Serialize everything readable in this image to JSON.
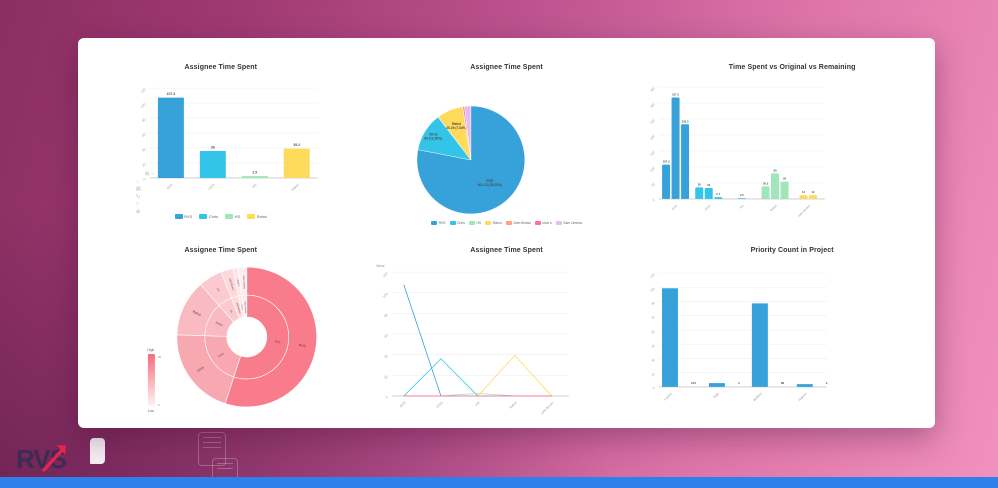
{
  "logo": {
    "text": "RVS"
  },
  "footer": {
    "strip_color": "#2f80ea"
  },
  "palette": [
    "#37a2da",
    "#32c5e9",
    "#9fe6b8",
    "#ffdb5c",
    "#ff9f7f",
    "#fb7293",
    "#e7bcf3"
  ],
  "toolbox": {
    "row_icons": [
      "restore-icon",
      "line-icon"
    ],
    "col_icons": [
      "save-image-icon",
      "data-view-icon",
      "refresh-icon",
      "magic-type-icon",
      "zoom-icon"
    ]
  },
  "chart_data": [
    {
      "id": "assignee-bar",
      "type": "bar",
      "title": "Assignee Time Spent",
      "categories": [
        "RVS",
        "Chris",
        "HS",
        "Rahul"
      ],
      "values": [
        107.3,
        36,
        2.5,
        39.2
      ],
      "colors": [
        "#37a2da",
        "#32c5e9",
        "#9fe6b8",
        "#ffdb5c"
      ],
      "legend": [
        "RVS",
        "Chris",
        "HS",
        "Rahul"
      ],
      "ylim": [
        0,
        120
      ],
      "ystep": 20,
      "grid": true,
      "legend_position": "bottom"
    },
    {
      "id": "assignee-pie",
      "type": "pie",
      "title": "Assignee Time Spent",
      "slices": [
        {
          "name": "RVS",
          "value": "401.10",
          "pct": "78.23%",
          "share": 78.23,
          "color": "#37a2da",
          "show_label": true,
          "label_r": 0.55
        },
        {
          "name": "Chris",
          "value": "60",
          "pct": "11.56%",
          "share": 11.56,
          "color": "#32c5e9",
          "show_label": true,
          "label_r": 0.82
        },
        {
          "name": "HS",
          "value": "",
          "pct": "",
          "share": 0.1,
          "color": "#9fe6b8",
          "show_label": false,
          "label_r": 0
        },
        {
          "name": "Rahul",
          "value": "40.29",
          "pct": "7.84%",
          "share": 7.84,
          "color": "#ffdb5c",
          "show_label": true,
          "label_r": 0.68
        },
        {
          "name": "John Brown",
          "value": "",
          "pct": "",
          "share": 0.1,
          "color": "#ff9f7f",
          "show_label": false,
          "label_r": 0
        },
        {
          "name": "char s",
          "value": "",
          "pct": "",
          "share": 0.45,
          "color": "#fb7293",
          "show_label": false,
          "label_r": 0
        },
        {
          "name": "Sam Umesa",
          "value": "",
          "pct": "",
          "share": 1.94,
          "color": "#e7bcf3",
          "show_label": false,
          "label_r": 0
        }
      ],
      "legend": [
        "RVS",
        "Chris",
        "HS",
        "Rahul",
        "John Brown",
        "char s",
        "Sam Umesa"
      ],
      "legend_position": "bottom"
    },
    {
      "id": "time-spent-vs-original-vs-remaining",
      "type": "bar",
      "title": "Time Spent vs Original vs Remaining",
      "groups": [
        {
          "name": "RVS",
          "color": "#37a2da",
          "values": [
            107.3,
            317.2,
            233.5
          ]
        },
        {
          "name": "Chris",
          "color": "#32c5e9",
          "values": [
            36,
            34,
            5.7
          ]
        },
        {
          "name": "HS",
          "color": "#32c5e9",
          "values": [
            2.5
          ]
        },
        {
          "name": "Rahul",
          "color": "#9fe6b8",
          "values": [
            39.2,
            80,
            54
          ]
        },
        {
          "name": "John Brown",
          "color": "#ffdb5c",
          "values": [
            12,
            12
          ]
        }
      ],
      "ylim": [
        0,
        350
      ],
      "ystep": 50,
      "grid": true
    },
    {
      "id": "assignee-sunburst",
      "type": "sunburst",
      "title": "Assignee Time Spent",
      "segments": [
        {
          "name": "RVS",
          "share": 55,
          "color": "#f87c8b"
        },
        {
          "name": "Chris",
          "share": 20.5,
          "color": "#f8a8b1"
        },
        {
          "name": "Rahul",
          "share": 13,
          "color": "#f9bac2"
        },
        {
          "name": "HS",
          "share": 5.5,
          "color": "#fbcad0"
        },
        {
          "name": "John Brown",
          "share": 2.8,
          "color": "#fcd8db"
        },
        {
          "name": "char s",
          "share": 1.2,
          "color": "#fde6e8"
        },
        {
          "name": "Sam Umesa",
          "share": 2,
          "color": "#fdeef0"
        }
      ],
      "visualmap": {
        "high": "High",
        "low": "Low",
        "max_tick": "30",
        "min_tick": "0",
        "top_color": "#f76c7c",
        "bottom_color": "#fef2f2"
      }
    },
    {
      "id": "assignee-line",
      "type": "line",
      "title": "Assignee Time Spent",
      "ylabel": "Value",
      "categories": [
        "RVS",
        "Chris",
        "HS",
        "Rahul",
        "John Brown"
      ],
      "series": [
        {
          "name": "RVS",
          "color": "#37a2da",
          "values": [
            107.3,
            0,
            0,
            0,
            0
          ]
        },
        {
          "name": "Chris",
          "color": "#32c5e9",
          "values": [
            0,
            36,
            0,
            0,
            0
          ]
        },
        {
          "name": "HS",
          "color": "#9fe6b8",
          "values": [
            0,
            0,
            2.5,
            0,
            0
          ]
        },
        {
          "name": "Rahul",
          "color": "#ffdb5c",
          "values": [
            0,
            0,
            0,
            39.2,
            0
          ]
        },
        {
          "name": "John Brown",
          "color": "#ff9f7f",
          "values": [
            0,
            0,
            0,
            0,
            0
          ]
        },
        {
          "name": "Sam Umesa",
          "color": "#e7bcf3",
          "values": [
            0,
            0,
            0,
            0,
            0
          ]
        },
        {
          "name": "char s",
          "color": "#fb7293",
          "values": [
            0,
            0,
            0,
            0,
            0
          ]
        }
      ],
      "ylim": [
        0,
        120
      ],
      "ystep": 20,
      "grid": true
    },
    {
      "id": "priority-count",
      "type": "bar",
      "title": "Priority Count in Project",
      "categories": [
        "Lowest",
        "High",
        "Medium",
        "Highest"
      ],
      "values": [
        104,
        4,
        88,
        3
      ],
      "color": "#37a2da",
      "ylim": [
        0,
        120
      ],
      "ystep": 15,
      "grid": true,
      "value_label_side": "right"
    }
  ]
}
